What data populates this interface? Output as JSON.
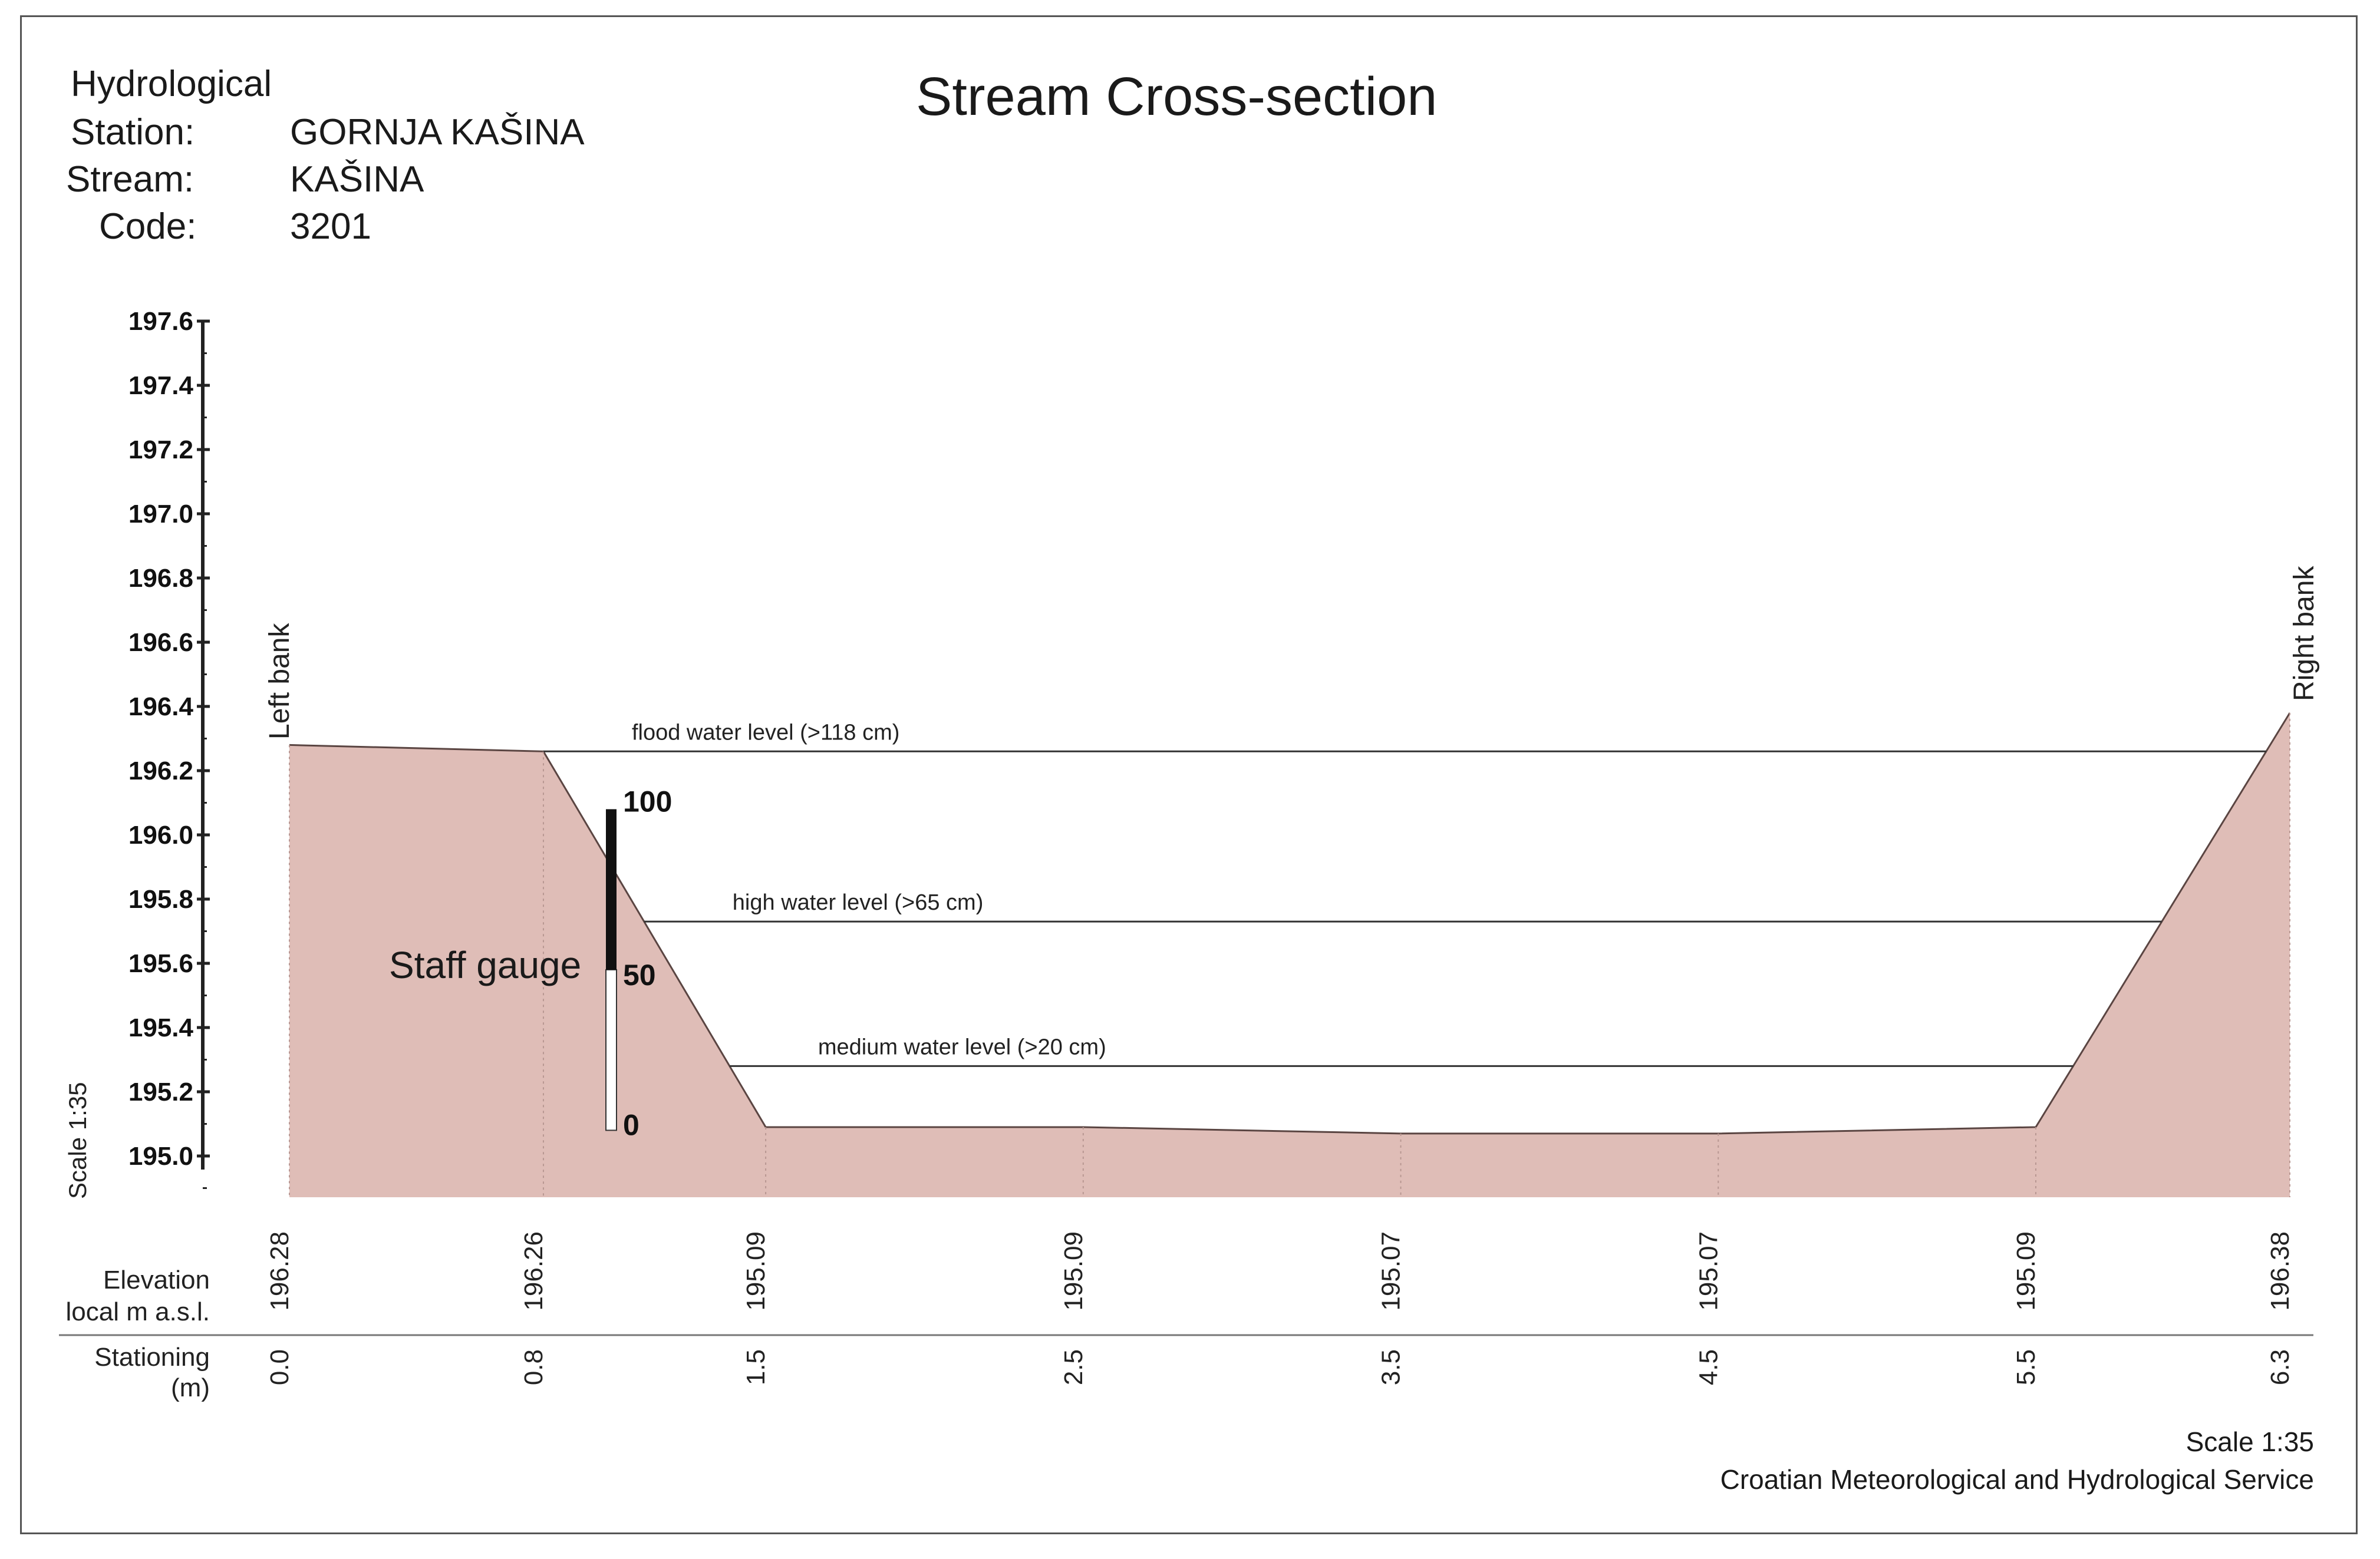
{
  "header": {
    "title": "Stream Cross-section",
    "station_label_1": "Hydrological",
    "station_label_2": "Station:",
    "station_value": "GORNJA KAŠINA",
    "stream_label": "Stream:",
    "stream_value": "KAŠINA",
    "code_label": "Code:",
    "code_value": "3201"
  },
  "chart_data": {
    "type": "area",
    "title": "Stream Cross-section",
    "ylabel": "",
    "scale_label": "Scale  1:35",
    "ylim": [
      194.9,
      197.6
    ],
    "y_ticks": [
      "197.6",
      "197.4",
      "197.2",
      "197.0",
      "196.8",
      "196.6",
      "196.4",
      "196.2",
      "196.0",
      "195.8",
      "195.6",
      "195.4",
      "195.2",
      "195.0"
    ],
    "x": [
      0.0,
      0.8,
      1.5,
      2.5,
      3.5,
      4.5,
      5.5,
      6.3
    ],
    "stationing_labels": [
      "0.0",
      "0.8",
      "1.5",
      "2.5",
      "3.5",
      "4.5",
      "5.5",
      "6.3"
    ],
    "elevation_labels": [
      "196.28",
      "196.26",
      "195.09",
      "195.09",
      "195.07",
      "195.07",
      "195.09",
      "196.38"
    ],
    "profile": [
      {
        "x": 0.0,
        "y": 196.28
      },
      {
        "x": 0.8,
        "y": 196.26
      },
      {
        "x": 1.5,
        "y": 195.09
      },
      {
        "x": 2.5,
        "y": 195.09
      },
      {
        "x": 3.5,
        "y": 195.07
      },
      {
        "x": 4.5,
        "y": 195.07
      },
      {
        "x": 5.5,
        "y": 195.09
      },
      {
        "x": 6.3,
        "y": 196.38
      }
    ],
    "water_levels": [
      {
        "label": "flood water level (>118 cm)",
        "elevation": 196.26
      },
      {
        "label": "high water level (>65 cm)",
        "elevation": 195.73
      },
      {
        "label": "medium water level (>20 cm)",
        "elevation": 195.28
      }
    ],
    "bank_labels": {
      "left": "Left bank",
      "right": "Right bank"
    },
    "staff_gauge": {
      "label": "Staff gauge",
      "ticks": [
        "100",
        "50",
        "0"
      ],
      "station": 1.0,
      "zero_elevation": 195.08,
      "top_elevation": 196.08
    },
    "row_labels": {
      "elevation": [
        "Elevation",
        "local m a.s.l."
      ],
      "stationing": [
        "Stationing",
        "(m)"
      ]
    },
    "colors": {
      "ground": "#dfbdb7",
      "gauge": "#111111",
      "line": "#333333"
    }
  },
  "footer": {
    "scale": "Scale  1:35",
    "organization": "Croatian Meteorological and Hydrological Service"
  }
}
